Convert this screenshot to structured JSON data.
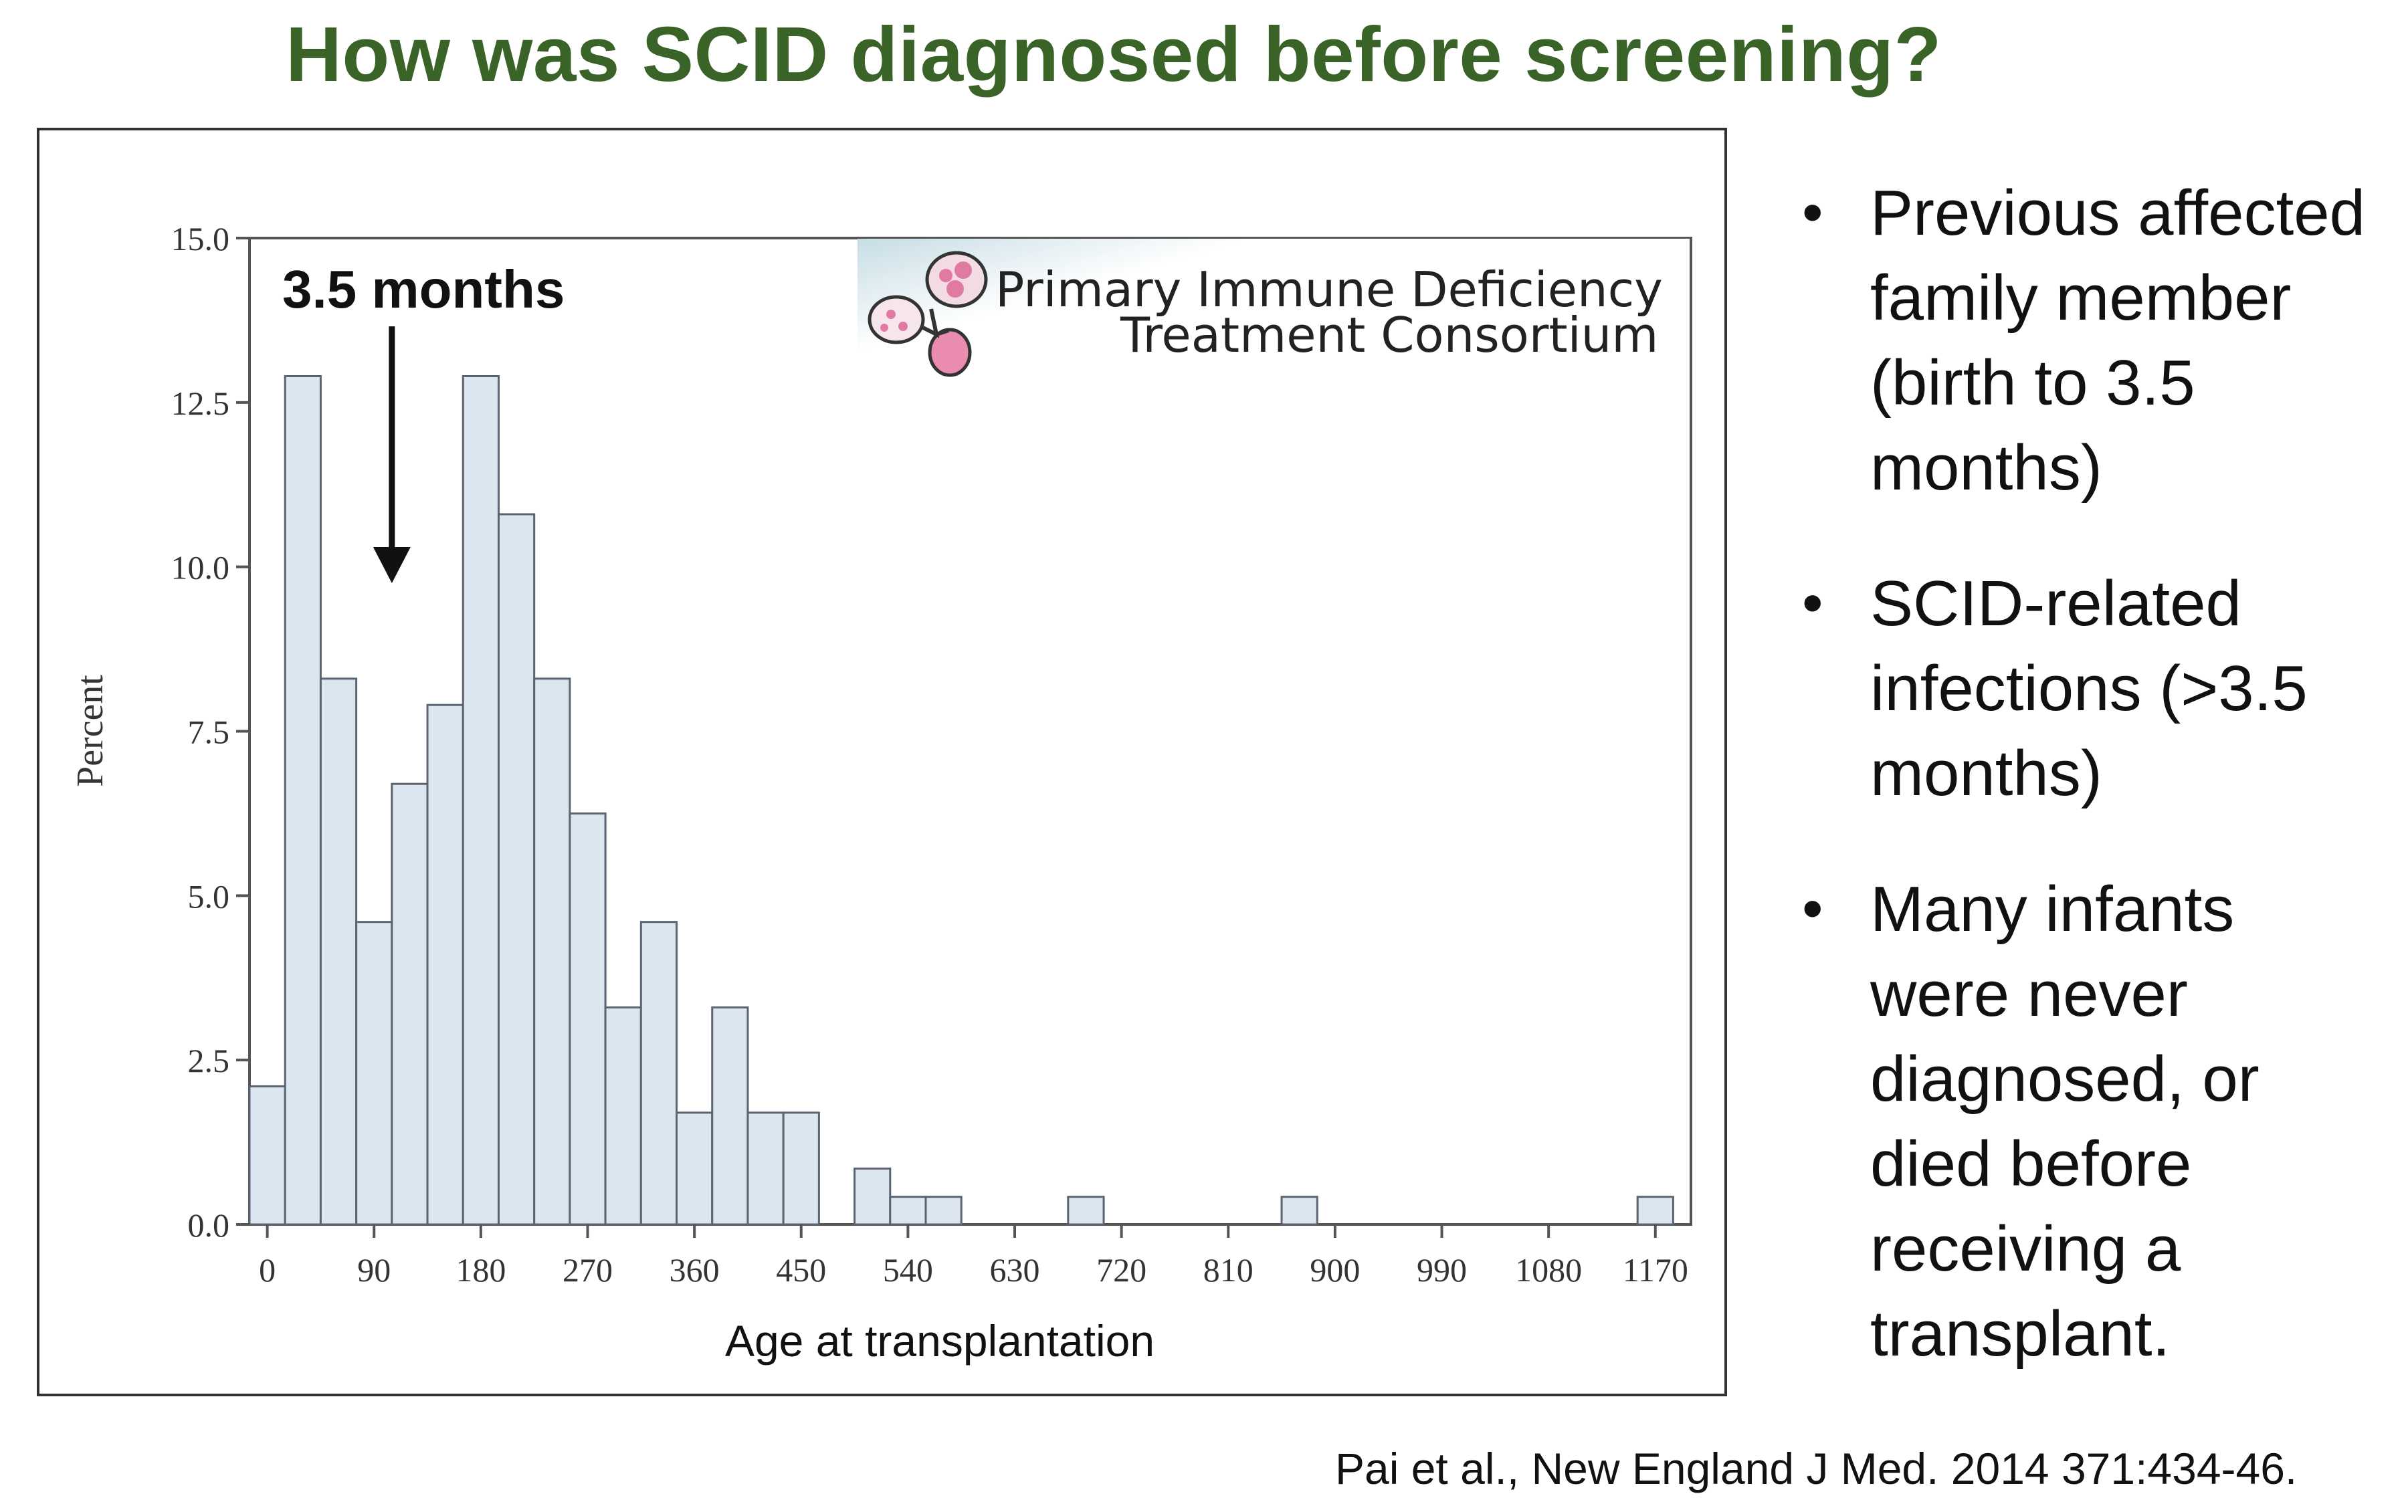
{
  "slide": {
    "title": "How was SCID diagnosed before screening?",
    "bullets": [
      "Previous affected family member (birth to 3.5 months)",
      "SCID-related infections (>3.5 months)",
      "Many infants were never diagnosed, or died before receiving a transplant."
    ],
    "bullet_lines": [
      [
        "Previous affected",
        "family member",
        "(birth to 3.5",
        "months)"
      ],
      [
        "SCID-related",
        "infections (>3.5",
        "months)"
      ],
      [
        "Many infants",
        "were never",
        "diagnosed, or",
        "died before",
        "receiving a",
        "transplant."
      ]
    ],
    "citation": "Pai et al., New England J Med. 2014 371:434-46.",
    "annotation": "3.5 months",
    "logo": {
      "line1": "Primary Immune Deficiency",
      "line2": "Treatment Consortium"
    },
    "colors": {
      "title": "#3a6327",
      "bar_fill": "#dce6f1",
      "bar_stroke": "#5b6470"
    }
  },
  "chart_data": {
    "type": "bar",
    "title": "",
    "xlabel": "Age at transplantation",
    "ylabel": "Percent",
    "xlim": [
      -15,
      1200
    ],
    "ylim": [
      0,
      15
    ],
    "bin_width": 30,
    "bins_start": [
      -15,
      15,
      45,
      75,
      105,
      135,
      165,
      195,
      225,
      255,
      285,
      315,
      345,
      375,
      405,
      435,
      465,
      495,
      525,
      555,
      675,
      855,
      1155
    ],
    "values": [
      2.1,
      12.9,
      8.3,
      4.6,
      6.7,
      7.9,
      12.9,
      10.8,
      8.3,
      6.25,
      3.3,
      4.6,
      1.7,
      3.3,
      1.7,
      1.7,
      0,
      0.85,
      0.42,
      0.42,
      0.42,
      0.42,
      0.42
    ],
    "x_ticks": [
      "0",
      "90",
      "180",
      "270",
      "360",
      "450",
      "540",
      "630",
      "720",
      "810",
      "900",
      "990",
      "1080",
      "1170"
    ],
    "x_tick_values": [
      0,
      90,
      180,
      270,
      360,
      450,
      540,
      630,
      720,
      810,
      900,
      990,
      1080,
      1170
    ],
    "y_ticks": [
      "0.0",
      "2.5",
      "5.0",
      "7.5",
      "10.0",
      "12.5",
      "15.0"
    ],
    "y_tick_values": [
      0,
      2.5,
      5,
      7.5,
      10,
      12.5,
      15
    ],
    "annotation_arrow_x": 105
  }
}
